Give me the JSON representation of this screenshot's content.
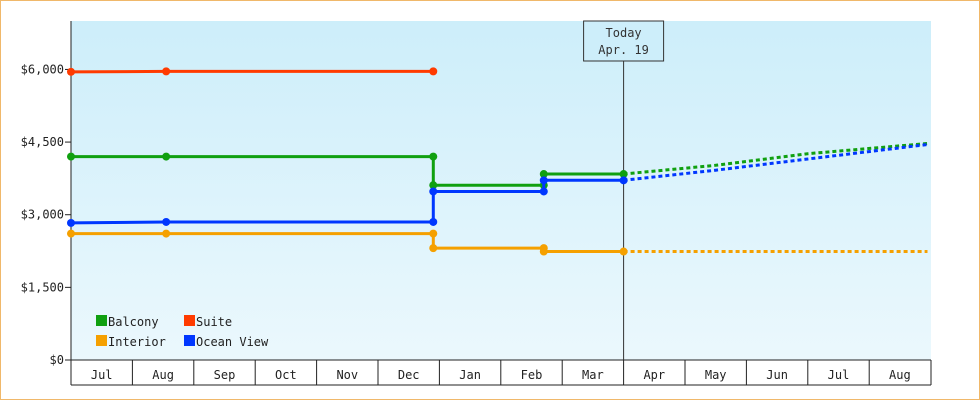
{
  "chart_data": {
    "type": "line",
    "step": true,
    "x_axis": {
      "type": "month-index",
      "start": "2023-07",
      "months": [
        "Jul",
        "Aug",
        "Sep",
        "Oct",
        "Nov",
        "Dec",
        "Jan",
        "Feb",
        "Mar",
        "Apr",
        "May",
        "Jun",
        "Jul",
        "Aug"
      ]
    },
    "ylim": [
      0,
      7000
    ],
    "yticks": [
      0,
      1500,
      3000,
      4500,
      6000
    ],
    "ytick_labels": [
      "$0",
      "$1,500",
      "$3,000",
      "$4,500",
      "$6,000"
    ],
    "today": {
      "line1": "Today",
      "line2": "Apr. 19",
      "x": 9.0
    },
    "background": {
      "top": "#cdeefa",
      "bottom": "#ebf8fd"
    },
    "legend": {
      "placement": "bottom-left"
    },
    "series": [
      {
        "name": "Suite",
        "color": "#ff3b00",
        "points": [
          [
            0.0,
            5950
          ],
          [
            1.55,
            5960
          ],
          [
            5.9,
            5960
          ]
        ],
        "forecast": []
      },
      {
        "name": "Balcony",
        "color": "#10a010",
        "points": [
          [
            0.0,
            4200
          ],
          [
            1.55,
            4200
          ],
          [
            5.9,
            4200
          ],
          [
            5.9,
            3610
          ],
          [
            7.7,
            3610
          ],
          [
            7.7,
            3840
          ],
          [
            9.0,
            3840
          ]
        ],
        "forecast": [
          [
            9.0,
            3840
          ],
          [
            10.5,
            4020
          ],
          [
            12.0,
            4260
          ],
          [
            13.95,
            4470
          ]
        ]
      },
      {
        "name": "Ocean View",
        "color": "#0037ff",
        "points": [
          [
            0.0,
            2830
          ],
          [
            1.55,
            2850
          ],
          [
            5.9,
            2850
          ],
          [
            5.9,
            3480
          ],
          [
            7.7,
            3480
          ],
          [
            7.7,
            3710
          ],
          [
            9.0,
            3710
          ]
        ],
        "forecast": [
          [
            9.0,
            3710
          ],
          [
            10.5,
            3920
          ],
          [
            12.0,
            4150
          ],
          [
            13.95,
            4450
          ]
        ]
      },
      {
        "name": "Interior",
        "color": "#f5a000",
        "points": [
          [
            0.0,
            2610
          ],
          [
            1.55,
            2610
          ],
          [
            5.9,
            2610
          ],
          [
            5.9,
            2310
          ],
          [
            7.7,
            2310
          ],
          [
            7.7,
            2240
          ],
          [
            9.0,
            2240
          ]
        ],
        "forecast": [
          [
            9.0,
            2240
          ],
          [
            13.95,
            2240
          ]
        ]
      }
    ]
  }
}
